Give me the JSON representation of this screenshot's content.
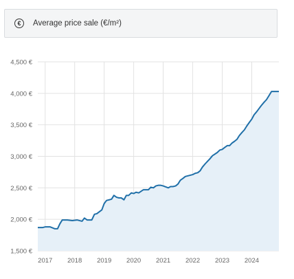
{
  "metric_selector": {
    "label": "Average price sale (€/m²)",
    "icon": "euro-circle-icon"
  },
  "chart_data": {
    "type": "area",
    "title": "",
    "xlabel": "",
    "ylabel": "",
    "ylim": [
      1500,
      4500
    ],
    "xlim": [
      2016.75,
      2024.92
    ],
    "y_ticks": [
      1500,
      2000,
      2500,
      3000,
      3500,
      4000,
      4500
    ],
    "y_tick_labels": [
      "1,500 €",
      "2,000 €",
      "2,500 €",
      "3,000 €",
      "3,500 €",
      "4,000 €",
      "4,500 €"
    ],
    "x_ticks": [
      2017,
      2018,
      2019,
      2020,
      2021,
      2022,
      2023,
      2024
    ],
    "x_tick_labels": [
      "2017",
      "2018",
      "2019",
      "2020",
      "2021",
      "2022",
      "2023",
      "2024"
    ],
    "grid": true,
    "colors": {
      "line": "#1f6fa8",
      "fill": "#e6f0f8",
      "grid": "#e2e2e2"
    },
    "series": [
      {
        "x": [
          2016.75,
          2016.92,
          2017.0,
          2017.17,
          2017.33,
          2017.42,
          2017.5,
          2017.58,
          2017.75,
          2017.92,
          2018.08,
          2018.25,
          2018.33,
          2018.42,
          2018.58,
          2018.67,
          2018.75,
          2018.92,
          2019.0,
          2019.08,
          2019.17,
          2019.25,
          2019.33,
          2019.42,
          2019.5,
          2019.58,
          2019.67,
          2019.75,
          2019.83,
          2019.92,
          2020.0,
          2020.08,
          2020.17,
          2020.33,
          2020.5,
          2020.58,
          2020.67,
          2020.75,
          2020.83,
          2020.92,
          2021.0,
          2021.17,
          2021.25,
          2021.33,
          2021.42,
          2021.5,
          2021.58,
          2021.67,
          2021.75,
          2021.83,
          2022.0,
          2022.08,
          2022.17,
          2022.25,
          2022.33,
          2022.42,
          2022.5,
          2022.58,
          2022.67,
          2022.83,
          2022.92,
          2023.0,
          2023.08,
          2023.17,
          2023.25,
          2023.33,
          2023.42,
          2023.5,
          2023.58,
          2023.67,
          2023.75,
          2023.83,
          2023.92,
          2024.0,
          2024.08,
          2024.17,
          2024.25,
          2024.33,
          2024.42,
          2024.5,
          2024.58,
          2024.67,
          2024.75,
          2024.83,
          2024.92
        ],
        "values": [
          1870,
          1870,
          1880,
          1880,
          1850,
          1850,
          1930,
          1990,
          1990,
          1980,
          1990,
          1970,
          2020,
          1990,
          1990,
          2080,
          2090,
          2150,
          2250,
          2300,
          2310,
          2320,
          2380,
          2350,
          2340,
          2340,
          2310,
          2380,
          2380,
          2420,
          2410,
          2430,
          2420,
          2470,
          2470,
          2510,
          2500,
          2530,
          2540,
          2540,
          2530,
          2500,
          2520,
          2520,
          2530,
          2560,
          2620,
          2650,
          2680,
          2690,
          2710,
          2730,
          2740,
          2770,
          2830,
          2880,
          2920,
          2960,
          3010,
          3060,
          3100,
          3110,
          3140,
          3170,
          3170,
          3210,
          3240,
          3270,
          3330,
          3380,
          3420,
          3480,
          3540,
          3590,
          3660,
          3710,
          3760,
          3810,
          3860,
          3900,
          3960,
          4030,
          4030,
          4030,
          4030
        ]
      }
    ]
  }
}
